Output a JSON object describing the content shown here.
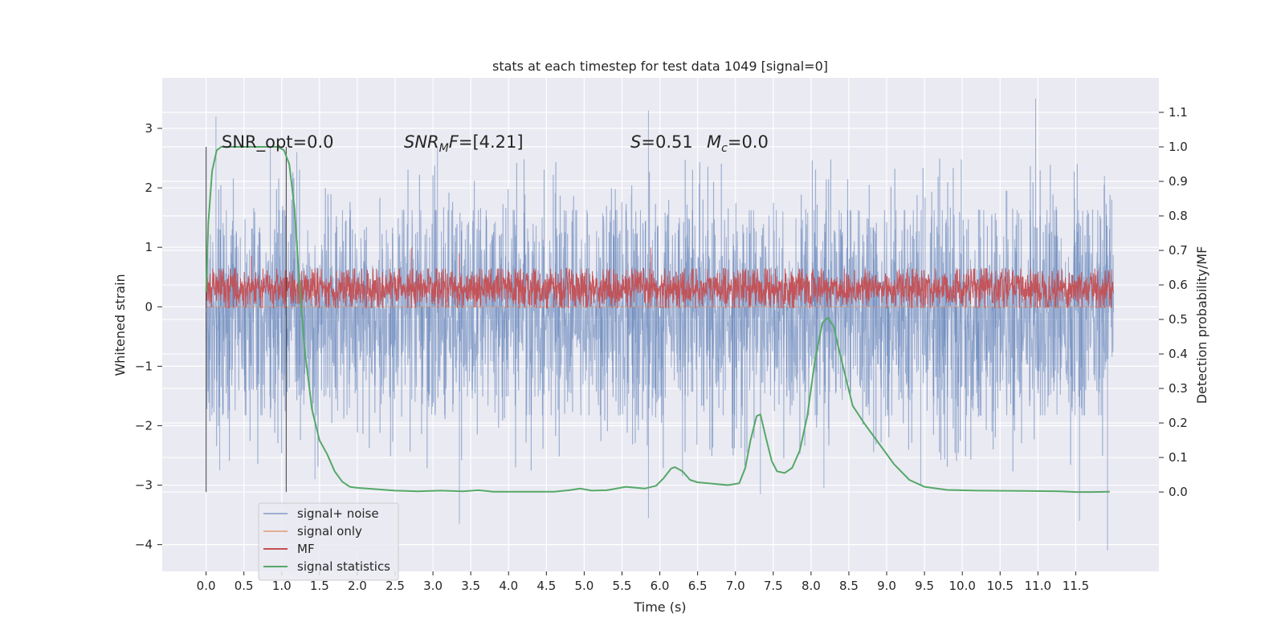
{
  "chart_data": {
    "type": "line",
    "title": "stats at each timestep for test data 1049 [signal=0]",
    "xlabel": "Time (s)",
    "ylabel": "Whitened strain",
    "y2label": "Detection probability/MF",
    "xlim": [
      -0.58,
      12.6
    ],
    "ylim": [
      -4.45,
      3.85
    ],
    "y2lim": [
      -0.23,
      1.2
    ],
    "xticks": [
      "0.0",
      "0.5",
      "1.0",
      "1.5",
      "2.0",
      "2.5",
      "3.0",
      "3.5",
      "4.0",
      "4.5",
      "5.0",
      "5.5",
      "6.0",
      "6.5",
      "7.0",
      "7.5",
      "8.0",
      "8.5",
      "9.0",
      "9.5",
      "10.0",
      "10.5",
      "11.0",
      "11.5"
    ],
    "yticks": [
      -4,
      -3,
      -2,
      -1,
      0,
      1,
      2,
      3
    ],
    "y2ticks": [
      "0.0",
      "0.1",
      "0.2",
      "0.3",
      "0.4",
      "0.5",
      "0.6",
      "0.7",
      "0.8",
      "0.9",
      "1.0",
      "1.1"
    ],
    "grid": true,
    "legend_position": "lower-left",
    "annotations": {
      "snr_opt": "SNR_opt=0.0",
      "snr_mf": "[4.21]",
      "s_value": "0.51",
      "mc_value": "0.0"
    },
    "markers_x": [
      0.0,
      1.06
    ],
    "series": [
      {
        "name": "signal+ noise",
        "color": "#4c72b0",
        "axis": "left",
        "style": "noise",
        "x_range": [
          0.0,
          12.0
        ],
        "typical_range": [
          -1.6,
          1.4
        ],
        "peaks": [
          [
            0.13,
            3.2
          ],
          [
            0.85,
            2.7
          ],
          [
            1.2,
            2.6
          ],
          [
            3.06,
            2.7
          ],
          [
            5.85,
            3.3
          ],
          [
            10.97,
            3.5
          ],
          [
            11.88,
            2.2
          ],
          [
            0.18,
            -2.75
          ],
          [
            1.44,
            -2.9
          ],
          [
            3.35,
            -3.65
          ],
          [
            5.85,
            -3.55
          ],
          [
            6.3,
            -2.85
          ],
          [
            7.33,
            -3.15
          ],
          [
            8.17,
            -3.05
          ],
          [
            9.45,
            -3.0
          ],
          [
            11.55,
            -3.6
          ],
          [
            11.92,
            -4.1
          ]
        ]
      },
      {
        "name": "signal only",
        "color": "#dd8452",
        "axis": "left",
        "style": "line",
        "x": [
          0.0,
          12.0
        ],
        "y": [
          0.0,
          0.0
        ]
      },
      {
        "name": "MF",
        "color": "#c44e52",
        "axis": "left",
        "style": "noise",
        "x_range": [
          0.0,
          12.0
        ],
        "typical_range": [
          0.02,
          0.6
        ],
        "peaks": [
          [
            2.72,
            1.0
          ],
          [
            5.88,
            1.0
          ],
          [
            3.35,
            0.9
          ],
          [
            0.6,
            0.85
          ]
        ]
      },
      {
        "name": "signal statistics",
        "color": "#55a868",
        "axis": "right",
        "style": "line",
        "x": [
          0.0,
          0.03,
          0.08,
          0.14,
          0.2,
          0.3,
          0.5,
          0.8,
          0.95,
          1.03,
          1.1,
          1.17,
          1.22,
          1.3,
          1.4,
          1.5,
          1.6,
          1.7,
          1.8,
          1.9,
          2.0,
          2.2,
          2.5,
          2.8,
          3.1,
          3.4,
          3.6,
          3.8,
          4.2,
          4.6,
          4.8,
          4.95,
          5.1,
          5.3,
          5.55,
          5.8,
          5.95,
          6.05,
          6.15,
          6.2,
          6.3,
          6.4,
          6.5,
          6.7,
          6.9,
          7.05,
          7.13,
          7.2,
          7.28,
          7.33,
          7.4,
          7.48,
          7.55,
          7.65,
          7.75,
          7.85,
          7.95,
          8.05,
          8.15,
          8.22,
          8.3,
          8.36,
          8.45,
          8.55,
          8.7,
          8.9,
          9.1,
          9.3,
          9.5,
          9.8,
          10.2,
          10.8,
          11.3,
          11.5,
          11.7,
          11.95
        ],
        "y": [
          0.58,
          0.78,
          0.93,
          0.99,
          1.0,
          1.0,
          1.0,
          1.0,
          1.0,
          0.99,
          0.95,
          0.82,
          0.65,
          0.42,
          0.24,
          0.15,
          0.11,
          0.06,
          0.03,
          0.015,
          0.012,
          0.009,
          0.004,
          0.002,
          0.004,
          0.002,
          0.005,
          0.001,
          0.001,
          0.001,
          0.005,
          0.01,
          0.004,
          0.005,
          0.015,
          0.01,
          0.018,
          0.04,
          0.068,
          0.072,
          0.06,
          0.035,
          0.028,
          0.024,
          0.02,
          0.025,
          0.07,
          0.15,
          0.22,
          0.225,
          0.16,
          0.09,
          0.06,
          0.055,
          0.07,
          0.12,
          0.22,
          0.38,
          0.49,
          0.505,
          0.48,
          0.42,
          0.34,
          0.25,
          0.2,
          0.14,
          0.08,
          0.035,
          0.015,
          0.006,
          0.004,
          0.003,
          0.002,
          0.0,
          0.0,
          0.001
        ]
      }
    ]
  }
}
